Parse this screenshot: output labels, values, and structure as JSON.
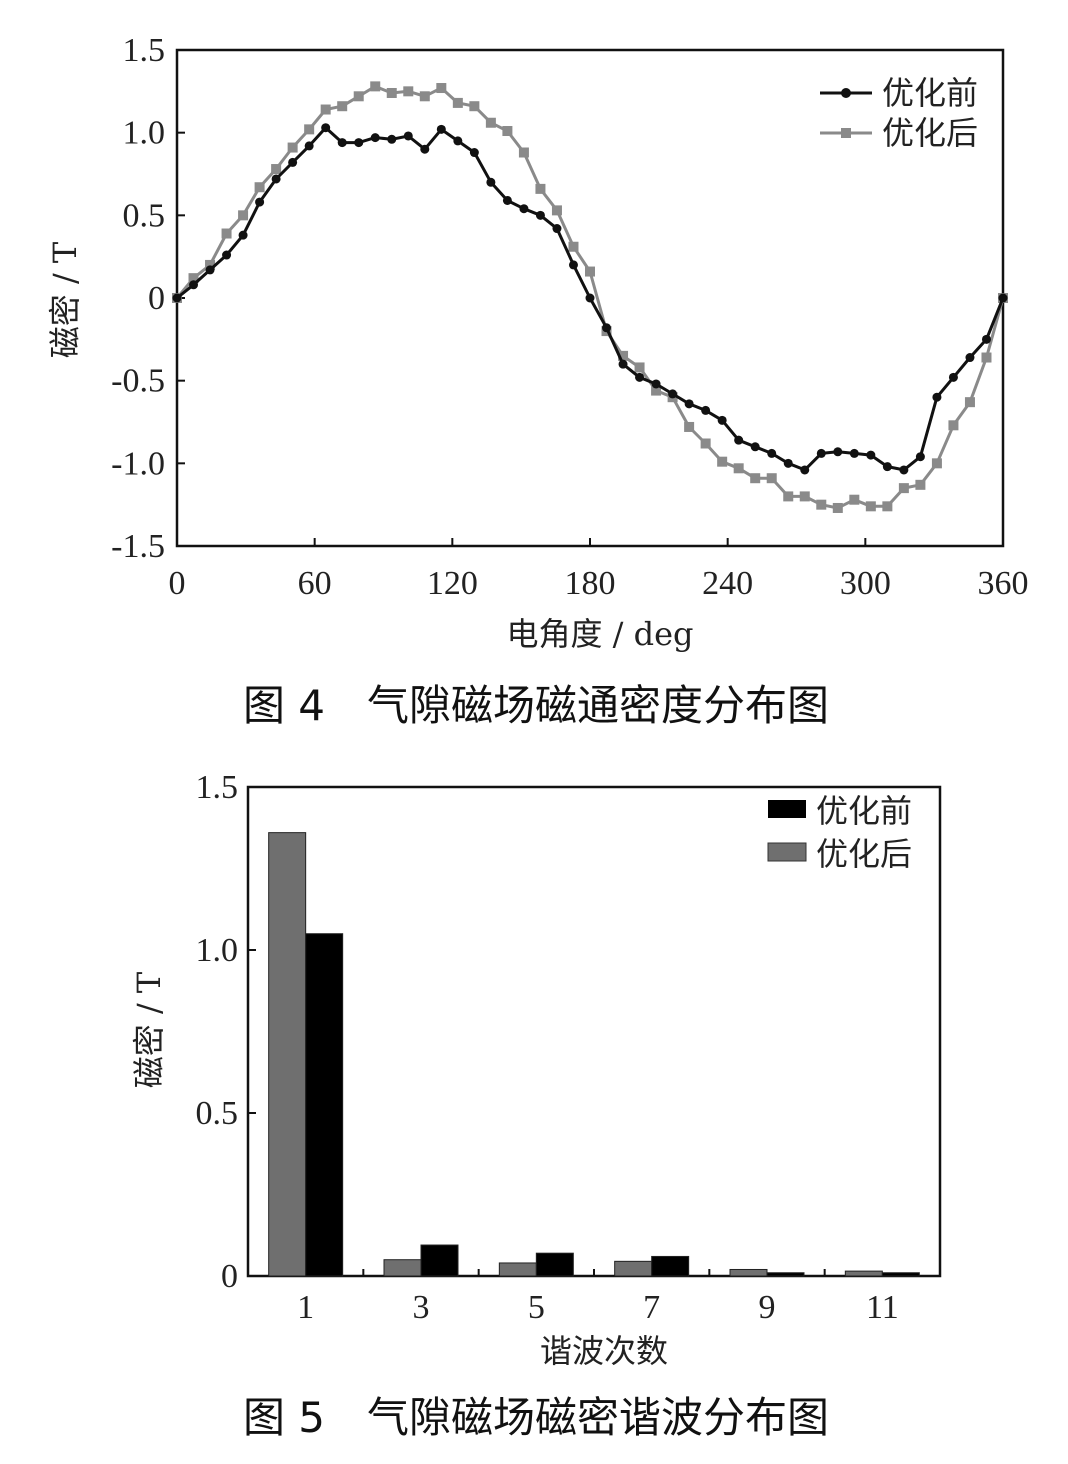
{
  "figure4": {
    "caption": "图 4　气隙磁场磁通密度分布图",
    "chart_data": {
      "type": "line",
      "xlabel": "电角度 / deg",
      "ylabel": "磁密 / T",
      "xlim": [
        0,
        360
      ],
      "ylim": [
        -1.5,
        1.5
      ],
      "xticks": [
        "0",
        "60",
        "120",
        "180",
        "240",
        "300",
        "360"
      ],
      "yticks": [
        "1.5",
        "1.0",
        "0.5",
        "0",
        "-0.5",
        "-1.0",
        "-1.5"
      ],
      "legend_position": "top-right",
      "grid": false,
      "series": [
        {
          "name": "优化前",
          "color": "#111111",
          "marker": "circle",
          "x": [
            0,
            7.2,
            14.4,
            21.6,
            28.8,
            36,
            43.2,
            50.4,
            57.6,
            64.8,
            72,
            79.2,
            86.4,
            93.6,
            100.8,
            108,
            115.2,
            122.4,
            129.6,
            136.8,
            144,
            151.2,
            158.4,
            165.6,
            172.8,
            180,
            187.2,
            194.4,
            201.6,
            208.8,
            216,
            223.2,
            230.4,
            237.6,
            244.8,
            252,
            259.2,
            266.4,
            273.6,
            280.8,
            288,
            295.2,
            302.4,
            309.6,
            316.8,
            324,
            331.2,
            338.4,
            345.6,
            352.8,
            360
          ],
          "y": [
            0,
            0.08,
            0.17,
            0.26,
            0.38,
            0.58,
            0.72,
            0.82,
            0.92,
            1.03,
            0.94,
            0.94,
            0.97,
            0.96,
            0.98,
            0.9,
            1.02,
            0.95,
            0.88,
            0.7,
            0.59,
            0.54,
            0.5,
            0.42,
            0.2,
            0,
            -0.18,
            -0.4,
            -0.48,
            -0.52,
            -0.58,
            -0.64,
            -0.68,
            -0.74,
            -0.86,
            -0.9,
            -0.94,
            -1.0,
            -1.04,
            -0.94,
            -0.93,
            -0.94,
            -0.95,
            -1.02,
            -1.04,
            -0.96,
            -0.6,
            -0.48,
            -0.36,
            -0.25,
            0
          ]
        },
        {
          "name": "优化后",
          "color": "#8a8a8a",
          "marker": "square",
          "x": [
            0,
            7.2,
            14.4,
            21.6,
            28.8,
            36,
            43.2,
            50.4,
            57.6,
            64.8,
            72,
            79.2,
            86.4,
            93.6,
            100.8,
            108,
            115.2,
            122.4,
            129.6,
            136.8,
            144,
            151.2,
            158.4,
            165.6,
            172.8,
            180,
            187.2,
            194.4,
            201.6,
            208.8,
            216,
            223.2,
            230.4,
            237.6,
            244.8,
            252,
            259.2,
            266.4,
            273.6,
            280.8,
            288,
            295.2,
            302.4,
            309.6,
            316.8,
            324,
            331.2,
            338.4,
            345.6,
            352.8,
            360
          ],
          "y": [
            0,
            0.12,
            0.2,
            0.39,
            0.5,
            0.67,
            0.78,
            0.91,
            1.02,
            1.14,
            1.16,
            1.22,
            1.28,
            1.24,
            1.25,
            1.22,
            1.27,
            1.18,
            1.16,
            1.06,
            1.01,
            0.88,
            0.66,
            0.53,
            0.31,
            0.16,
            -0.2,
            -0.35,
            -0.42,
            -0.56,
            -0.6,
            -0.78,
            -0.88,
            -0.99,
            -1.03,
            -1.09,
            -1.09,
            -1.2,
            -1.2,
            -1.25,
            -1.27,
            -1.22,
            -1.26,
            -1.26,
            -1.15,
            -1.13,
            -1.0,
            -0.77,
            -0.63,
            -0.36,
            0
          ]
        }
      ]
    }
  },
  "figure5": {
    "caption": "图 5　气隙磁场磁密谐波分布图",
    "chart_data": {
      "type": "bar",
      "xlabel": "谐波次数",
      "ylabel": "磁密 / T",
      "ylim": [
        0,
        1.5
      ],
      "yticks": [
        "1.5",
        "1.0",
        "0.5",
        "0"
      ],
      "categories": [
        "1",
        "3",
        "5",
        "7",
        "9",
        "11"
      ],
      "legend_position": "top-right",
      "grid": false,
      "series": [
        {
          "name": "优化后",
          "color": "#6f6f6f",
          "values": [
            1.36,
            0.05,
            0.04,
            0.045,
            0.02,
            0.015
          ]
        },
        {
          "name": "优化前",
          "color": "#000000",
          "values": [
            1.05,
            0.095,
            0.07,
            0.06,
            0.01,
            0.01
          ]
        }
      ],
      "legend_order": [
        "优化前",
        "优化后"
      ]
    }
  }
}
